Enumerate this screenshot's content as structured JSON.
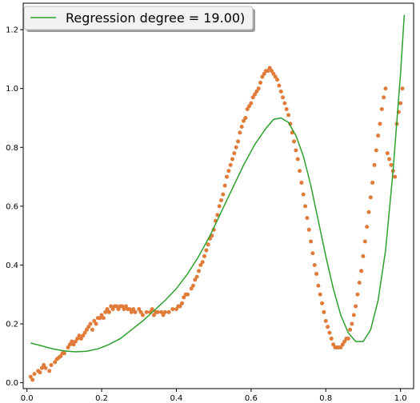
{
  "chart_data": {
    "type": "scatter",
    "xlim": [
      -0.01,
      1.035
    ],
    "ylim": [
      -0.02,
      1.29
    ],
    "x_ticks": [
      0.0,
      0.2,
      0.4,
      0.6,
      0.8,
      1.0
    ],
    "y_ticks": [
      0.0,
      0.2,
      0.4,
      0.6,
      0.8,
      1.0,
      1.2
    ],
    "x_tick_labels": [
      "0.0",
      "0.2",
      "0.4",
      "0.6",
      "0.8",
      "1.0"
    ],
    "y_tick_labels": [
      "0.0",
      "0.2",
      "0.4",
      "0.6",
      "0.8",
      "1.0",
      "1.2"
    ],
    "grid": false,
    "legend": {
      "position": "top-left",
      "entries": [
        "Regression degree = 19.00)"
      ]
    },
    "colors": {
      "fit_line": "#2ca02c",
      "points": "#e07b39"
    },
    "series": [
      {
        "kind": "scatter",
        "points": [
          [
            0.01,
            0.02
          ],
          [
            0.015,
            0.01
          ],
          [
            0.02,
            0.03
          ],
          [
            0.03,
            0.04
          ],
          [
            0.035,
            0.035
          ],
          [
            0.04,
            0.05
          ],
          [
            0.045,
            0.06
          ],
          [
            0.05,
            0.05
          ],
          [
            0.06,
            0.04
          ],
          [
            0.065,
            0.06
          ],
          [
            0.075,
            0.07
          ],
          [
            0.08,
            0.08
          ],
          [
            0.085,
            0.085
          ],
          [
            0.09,
            0.09
          ],
          [
            0.095,
            0.1
          ],
          [
            0.1,
            0.1
          ],
          [
            0.11,
            0.12
          ],
          [
            0.115,
            0.13
          ],
          [
            0.12,
            0.14
          ],
          [
            0.125,
            0.13
          ],
          [
            0.13,
            0.14
          ],
          [
            0.135,
            0.15
          ],
          [
            0.14,
            0.16
          ],
          [
            0.145,
            0.15
          ],
          [
            0.15,
            0.16
          ],
          [
            0.155,
            0.17
          ],
          [
            0.16,
            0.18
          ],
          [
            0.165,
            0.19
          ],
          [
            0.17,
            0.2
          ],
          [
            0.175,
            0.18
          ],
          [
            0.18,
            0.21
          ],
          [
            0.185,
            0.2
          ],
          [
            0.19,
            0.22
          ],
          [
            0.195,
            0.22
          ],
          [
            0.2,
            0.23
          ],
          [
            0.205,
            0.22
          ],
          [
            0.21,
            0.24
          ],
          [
            0.215,
            0.25
          ],
          [
            0.22,
            0.24
          ],
          [
            0.225,
            0.26
          ],
          [
            0.23,
            0.25
          ],
          [
            0.235,
            0.26
          ],
          [
            0.24,
            0.26
          ],
          [
            0.245,
            0.25
          ],
          [
            0.25,
            0.26
          ],
          [
            0.255,
            0.26
          ],
          [
            0.26,
            0.25
          ],
          [
            0.265,
            0.26
          ],
          [
            0.27,
            0.25
          ],
          [
            0.275,
            0.25
          ],
          [
            0.28,
            0.24
          ],
          [
            0.285,
            0.25
          ],
          [
            0.29,
            0.24
          ],
          [
            0.3,
            0.25
          ],
          [
            0.305,
            0.24
          ],
          [
            0.31,
            0.23
          ],
          [
            0.32,
            0.24
          ],
          [
            0.33,
            0.24
          ],
          [
            0.335,
            0.25
          ],
          [
            0.34,
            0.23
          ],
          [
            0.345,
            0.24
          ],
          [
            0.35,
            0.24
          ],
          [
            0.36,
            0.24
          ],
          [
            0.365,
            0.23
          ],
          [
            0.37,
            0.24
          ],
          [
            0.38,
            0.24
          ],
          [
            0.39,
            0.25
          ],
          [
            0.4,
            0.25
          ],
          [
            0.405,
            0.26
          ],
          [
            0.41,
            0.26
          ],
          [
            0.415,
            0.27
          ],
          [
            0.42,
            0.29
          ],
          [
            0.425,
            0.3
          ],
          [
            0.43,
            0.3
          ],
          [
            0.44,
            0.32
          ],
          [
            0.445,
            0.33
          ],
          [
            0.45,
            0.35
          ],
          [
            0.455,
            0.36
          ],
          [
            0.46,
            0.38
          ],
          [
            0.465,
            0.4
          ],
          [
            0.47,
            0.41
          ],
          [
            0.475,
            0.43
          ],
          [
            0.48,
            0.45
          ],
          [
            0.485,
            0.47
          ],
          [
            0.49,
            0.49
          ],
          [
            0.495,
            0.5
          ],
          [
            0.5,
            0.52
          ],
          [
            0.505,
            0.55
          ],
          [
            0.51,
            0.57
          ],
          [
            0.515,
            0.6
          ],
          [
            0.52,
            0.62
          ],
          [
            0.525,
            0.64
          ],
          [
            0.53,
            0.67
          ],
          [
            0.535,
            0.7
          ],
          [
            0.54,
            0.72
          ],
          [
            0.545,
            0.74
          ],
          [
            0.55,
            0.76
          ],
          [
            0.555,
            0.78
          ],
          [
            0.56,
            0.8
          ],
          [
            0.565,
            0.82
          ],
          [
            0.57,
            0.85
          ],
          [
            0.575,
            0.87
          ],
          [
            0.58,
            0.89
          ],
          [
            0.585,
            0.9
          ],
          [
            0.59,
            0.93
          ],
          [
            0.595,
            0.94
          ],
          [
            0.6,
            0.95
          ],
          [
            0.605,
            0.97
          ],
          [
            0.61,
            0.98
          ],
          [
            0.615,
            0.99
          ],
          [
            0.62,
            1.0
          ],
          [
            0.625,
            1.02
          ],
          [
            0.63,
            1.04
          ],
          [
            0.635,
            1.05
          ],
          [
            0.64,
            1.06
          ],
          [
            0.645,
            1.06
          ],
          [
            0.65,
            1.07
          ],
          [
            0.655,
            1.06
          ],
          [
            0.66,
            1.05
          ],
          [
            0.665,
            1.04
          ],
          [
            0.67,
            1.03
          ],
          [
            0.675,
            1.01
          ],
          [
            0.68,
            0.99
          ],
          [
            0.685,
            0.97
          ],
          [
            0.69,
            0.95
          ],
          [
            0.695,
            0.93
          ],
          [
            0.7,
            0.91
          ],
          [
            0.705,
            0.88
          ],
          [
            0.71,
            0.85
          ],
          [
            0.715,
            0.82
          ],
          [
            0.72,
            0.79
          ],
          [
            0.725,
            0.76
          ],
          [
            0.73,
            0.72
          ],
          [
            0.735,
            0.68
          ],
          [
            0.74,
            0.64
          ],
          [
            0.745,
            0.6
          ],
          [
            0.75,
            0.56
          ],
          [
            0.755,
            0.52
          ],
          [
            0.76,
            0.48
          ],
          [
            0.765,
            0.44
          ],
          [
            0.77,
            0.4
          ],
          [
            0.775,
            0.37
          ],
          [
            0.78,
            0.33
          ],
          [
            0.785,
            0.3
          ],
          [
            0.79,
            0.27
          ],
          [
            0.795,
            0.24
          ],
          [
            0.8,
            0.21
          ],
          [
            0.805,
            0.19
          ],
          [
            0.81,
            0.17
          ],
          [
            0.815,
            0.15
          ],
          [
            0.82,
            0.13
          ],
          [
            0.825,
            0.12
          ],
          [
            0.83,
            0.12
          ],
          [
            0.835,
            0.12
          ],
          [
            0.84,
            0.12
          ],
          [
            0.845,
            0.13
          ],
          [
            0.85,
            0.14
          ],
          [
            0.855,
            0.15
          ],
          [
            0.86,
            0.15
          ],
          [
            0.865,
            0.18
          ],
          [
            0.87,
            0.2
          ],
          [
            0.875,
            0.23
          ],
          [
            0.88,
            0.26
          ],
          [
            0.885,
            0.3
          ],
          [
            0.89,
            0.34
          ],
          [
            0.895,
            0.38
          ],
          [
            0.9,
            0.43
          ],
          [
            0.905,
            0.48
          ],
          [
            0.91,
            0.53
          ],
          [
            0.915,
            0.58
          ],
          [
            0.92,
            0.63
          ],
          [
            0.925,
            0.68
          ],
          [
            0.93,
            0.74
          ],
          [
            0.935,
            0.79
          ],
          [
            0.94,
            0.84
          ],
          [
            0.945,
            0.88
          ],
          [
            0.95,
            0.93
          ],
          [
            0.955,
            0.97
          ],
          [
            0.96,
            1.0
          ],
          [
            0.965,
            0.78
          ],
          [
            0.97,
            0.76
          ],
          [
            0.975,
            0.74
          ],
          [
            0.98,
            0.72
          ],
          [
            0.985,
            0.7
          ],
          [
            0.99,
            0.88
          ],
          [
            0.995,
            0.92
          ],
          [
            1.0,
            0.95
          ],
          [
            1.005,
            1.0
          ]
        ]
      },
      {
        "kind": "line",
        "points": [
          [
            0.01,
            0.135
          ],
          [
            0.04,
            0.125
          ],
          [
            0.07,
            0.115
          ],
          [
            0.1,
            0.108
          ],
          [
            0.13,
            0.105
          ],
          [
            0.16,
            0.107
          ],
          [
            0.19,
            0.115
          ],
          [
            0.22,
            0.13
          ],
          [
            0.25,
            0.15
          ],
          [
            0.28,
            0.18
          ],
          [
            0.31,
            0.21
          ],
          [
            0.34,
            0.245
          ],
          [
            0.37,
            0.28
          ],
          [
            0.4,
            0.32
          ],
          [
            0.43,
            0.37
          ],
          [
            0.46,
            0.43
          ],
          [
            0.49,
            0.5
          ],
          [
            0.52,
            0.58
          ],
          [
            0.55,
            0.66
          ],
          [
            0.58,
            0.74
          ],
          [
            0.61,
            0.81
          ],
          [
            0.64,
            0.865
          ],
          [
            0.66,
            0.895
          ],
          [
            0.68,
            0.9
          ],
          [
            0.7,
            0.885
          ],
          [
            0.72,
            0.84
          ],
          [
            0.74,
            0.77
          ],
          [
            0.76,
            0.67
          ],
          [
            0.78,
            0.55
          ],
          [
            0.8,
            0.43
          ],
          [
            0.82,
            0.32
          ],
          [
            0.84,
            0.23
          ],
          [
            0.86,
            0.17
          ],
          [
            0.88,
            0.14
          ],
          [
            0.9,
            0.14
          ],
          [
            0.92,
            0.18
          ],
          [
            0.94,
            0.28
          ],
          [
            0.96,
            0.45
          ],
          [
            0.98,
            0.72
          ],
          [
            1.0,
            1.05
          ],
          [
            1.01,
            1.25
          ]
        ]
      }
    ]
  }
}
